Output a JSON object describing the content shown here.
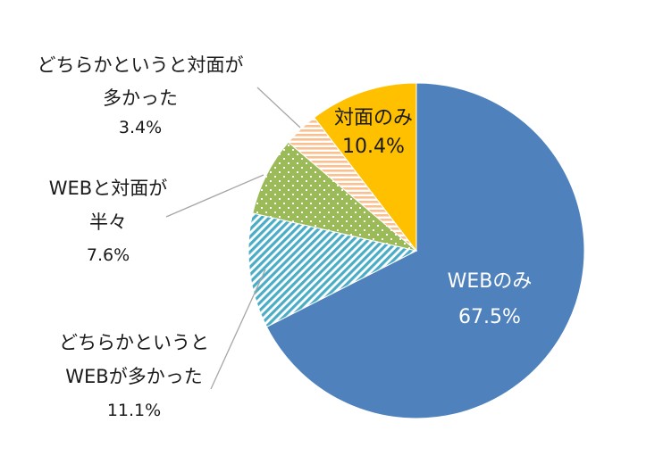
{
  "chart_data": {
    "type": "pie",
    "title": "",
    "slices": [
      {
        "label_lines": [
          "WEBのみ"
        ],
        "value": 67.5,
        "value_text": "67.5%",
        "color": "#4f81bd",
        "pattern": "solid",
        "label_position": "inside"
      },
      {
        "label_lines": [
          "どちらかというと",
          "WEBが多かった"
        ],
        "value": 11.1,
        "value_text": "11.1%",
        "color": "#4bacc6",
        "pattern": "diagonal-stripes",
        "label_position": "outside"
      },
      {
        "label_lines": [
          "WEBと対面が",
          "半々"
        ],
        "value": 7.6,
        "value_text": "7.6%",
        "color": "#9bbb59",
        "pattern": "dots",
        "label_position": "outside"
      },
      {
        "label_lines": [
          "どちらかというと対面が",
          "多かった"
        ],
        "value": 3.4,
        "value_text": "3.4%",
        "color": "#fac090",
        "pattern": "horizontal-stripes",
        "label_position": "outside"
      },
      {
        "label_lines": [
          "対面のみ"
        ],
        "value": 10.4,
        "value_text": "10.4%",
        "color": "#ffc000",
        "pattern": "solid",
        "label_position": "inside"
      }
    ],
    "start_angle": "12 o'clock",
    "direction": "clockwise",
    "legend": "none"
  }
}
